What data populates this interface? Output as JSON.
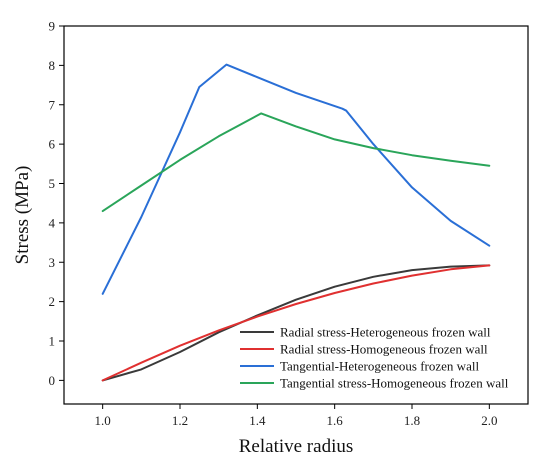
{
  "chart_data": {
    "type": "line",
    "title": "",
    "xlabel": "Relative radius",
    "ylabel": "Stress (MPa)",
    "xlim": [
      0.9,
      2.1
    ],
    "ylim": [
      -0.6,
      9
    ],
    "xticks": [
      1.0,
      1.2,
      1.4,
      1.6,
      1.8,
      2.0
    ],
    "xtick_labels": [
      "1.0",
      "1.2",
      "1.4",
      "1.6",
      "1.8",
      "2.0"
    ],
    "yticks": [
      0,
      1,
      2,
      3,
      4,
      5,
      6,
      7,
      8,
      9
    ],
    "ytick_labels": [
      "0",
      "1",
      "2",
      "3",
      "4",
      "5",
      "6",
      "7",
      "8",
      "9"
    ],
    "grid": false,
    "legend_position": "bottom-right",
    "series": [
      {
        "name": "Radial stress-Heterogeneous frozen wall",
        "color": "#3a3a3a",
        "x": [
          1.0,
          1.1,
          1.2,
          1.3,
          1.4,
          1.5,
          1.6,
          1.7,
          1.8,
          1.9,
          2.0
        ],
        "y": [
          0.0,
          0.28,
          0.72,
          1.22,
          1.65,
          2.05,
          2.38,
          2.63,
          2.8,
          2.89,
          2.92
        ]
      },
      {
        "name": "Radial stress-Homogeneous frozen wall",
        "color": "#e03030",
        "x": [
          1.0,
          1.1,
          1.2,
          1.3,
          1.4,
          1.5,
          1.6,
          1.7,
          1.8,
          1.9,
          2.0
        ],
        "y": [
          0.0,
          0.45,
          0.88,
          1.27,
          1.62,
          1.94,
          2.22,
          2.46,
          2.66,
          2.82,
          2.92
        ]
      },
      {
        "name": "Tangential-Heterogeneous frozen wall",
        "color": "#2a6fd6",
        "x": [
          1.0,
          1.1,
          1.2,
          1.25,
          1.32,
          1.4,
          1.5,
          1.62,
          1.63,
          1.7,
          1.8,
          1.9,
          2.0
        ],
        "y": [
          2.2,
          4.15,
          6.3,
          7.45,
          8.02,
          7.7,
          7.3,
          6.9,
          6.85,
          6.0,
          4.9,
          4.05,
          3.42
        ]
      },
      {
        "name": "Tangential stress-Homogeneous frozen wall",
        "color": "#2aa55a",
        "x": [
          1.0,
          1.1,
          1.2,
          1.3,
          1.41,
          1.5,
          1.6,
          1.7,
          1.8,
          1.9,
          2.0
        ],
        "y": [
          4.3,
          4.95,
          5.6,
          6.2,
          6.78,
          6.45,
          6.12,
          5.9,
          5.72,
          5.58,
          5.45
        ]
      }
    ]
  }
}
